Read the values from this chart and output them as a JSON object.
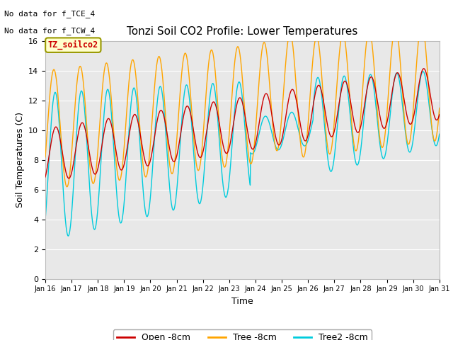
{
  "title": "Tonzi Soil CO2 Profile: Lower Temperatures",
  "xlabel": "Time",
  "ylabel": "Soil Temperatures (C)",
  "annotation1": "No data for f_TCE_4",
  "annotation2": "No data for f_TCW_4",
  "subtitle_box": "TZ_soilco2",
  "ylim": [
    0,
    16
  ],
  "xlim_start": 16,
  "xlim_end": 31,
  "legend_labels": [
    "Open -8cm",
    "Tree -8cm",
    "Tree2 -8cm"
  ],
  "open_color": "#cc0000",
  "tree_color": "#ffa500",
  "tree2_color": "#00ccdd",
  "bg_color": "#e8e8e8",
  "grid_color": "#ffffff",
  "fig_color": "#ffffff",
  "annot_fontsize": 8,
  "title_fontsize": 11,
  "label_fontsize": 9,
  "tick_fontsize": 7
}
